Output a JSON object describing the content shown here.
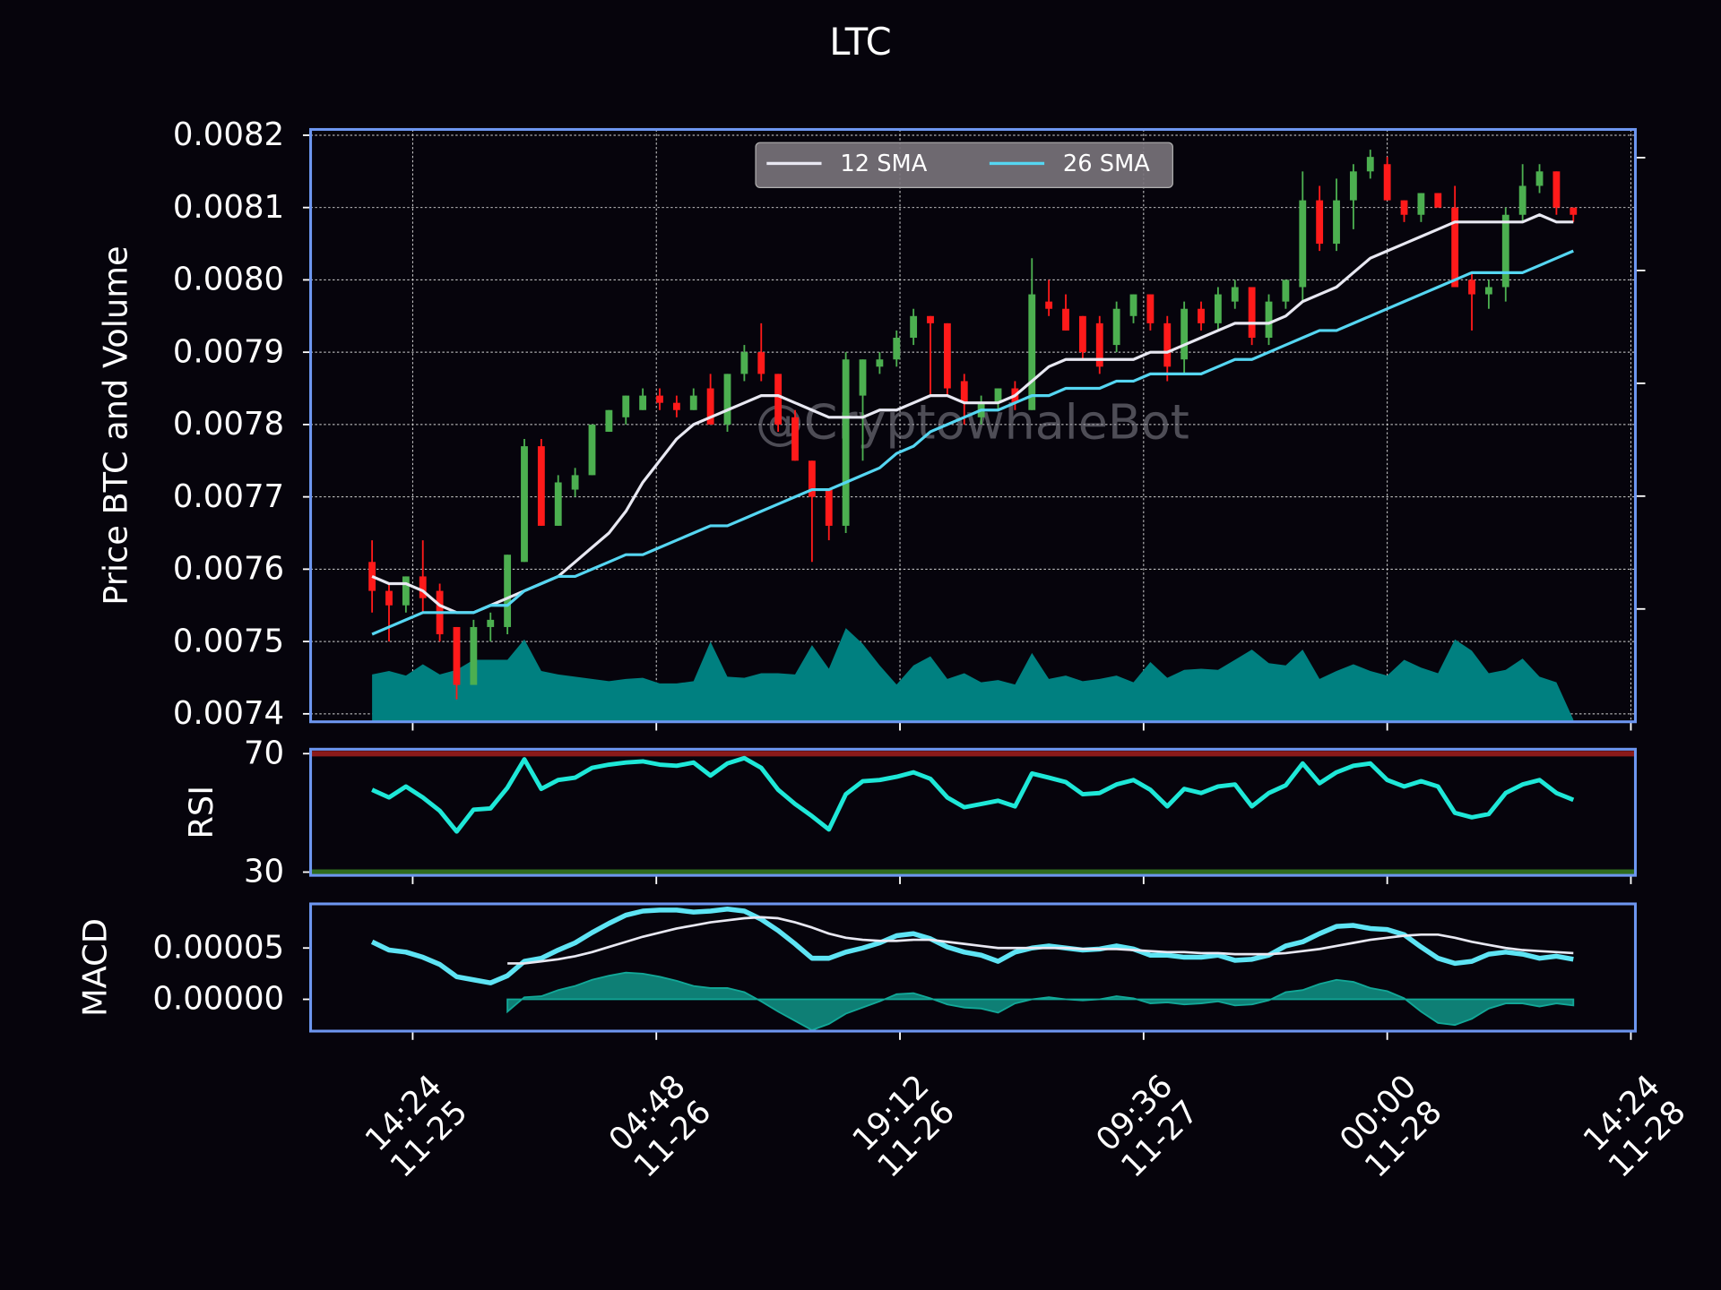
{
  "chart_data": [
    {
      "type": "candlestick",
      "title": "LTC",
      "ylabel": "Price BTC and Volume",
      "watermark": "@CryptowhaleBot",
      "x": [
        "11-25 12:00",
        "11-25 13:00",
        "11-25 14:00",
        "11-25 15:00",
        "11-25 16:00",
        "11-25 17:00",
        "11-25 18:00",
        "11-25 19:00",
        "11-25 20:00",
        "11-25 21:00",
        "11-25 22:00",
        "11-25 23:00",
        "11-26 00:00",
        "11-26 01:00",
        "11-26 02:00",
        "11-26 03:00",
        "11-26 04:00",
        "11-26 05:00",
        "11-26 06:00",
        "11-26 07:00",
        "11-26 08:00",
        "11-26 09:00",
        "11-26 10:00",
        "11-26 11:00",
        "11-26 12:00",
        "11-26 13:00",
        "11-26 14:00",
        "11-26 15:00",
        "11-26 16:00",
        "11-26 17:00",
        "11-26 18:00",
        "11-26 19:00",
        "11-26 20:00",
        "11-26 21:00",
        "11-26 22:00",
        "11-26 23:00",
        "11-27 00:00",
        "11-27 01:00",
        "11-27 02:00",
        "11-27 03:00",
        "11-27 04:00",
        "11-27 05:00",
        "11-27 06:00",
        "11-27 07:00",
        "11-27 08:00",
        "11-27 09:00",
        "11-27 10:00",
        "11-27 11:00",
        "11-27 12:00",
        "11-27 13:00",
        "11-27 14:00",
        "11-27 15:00",
        "11-27 16:00",
        "11-27 17:00",
        "11-27 18:00",
        "11-27 19:00",
        "11-27 20:00",
        "11-27 21:00",
        "11-27 22:00",
        "11-27 23:00",
        "11-28 00:00",
        "11-28 01:00",
        "11-28 02:00",
        "11-28 03:00",
        "11-28 04:00",
        "11-28 05:00",
        "11-28 06:00",
        "11-28 07:00",
        "11-28 08:00",
        "11-28 09:00",
        "11-28 10:00",
        "11-28 11:00"
      ],
      "open": [
        0.00761,
        0.00757,
        0.00755,
        0.00759,
        0.00757,
        0.00752,
        0.00744,
        0.00752,
        0.00752,
        0.00761,
        0.00777,
        0.00766,
        0.00771,
        0.00773,
        0.00779,
        0.00781,
        0.00782,
        0.00784,
        0.00783,
        0.00782,
        0.00785,
        0.0078,
        0.00787,
        0.0079,
        0.00787,
        0.00781,
        0.00775,
        0.00771,
        0.00766,
        0.00784,
        0.00788,
        0.00789,
        0.00792,
        0.00795,
        0.00794,
        0.00786,
        0.00781,
        0.00783,
        0.00785,
        0.00782,
        0.00797,
        0.00796,
        0.00795,
        0.00794,
        0.00791,
        0.00795,
        0.00798,
        0.00794,
        0.00789,
        0.00796,
        0.00794,
        0.00797,
        0.00799,
        0.00792,
        0.00797,
        0.00799,
        0.00811,
        0.00805,
        0.00811,
        0.00815,
        0.00816,
        0.00811,
        0.00809,
        0.00812,
        0.0081,
        0.008,
        0.00798,
        0.00799,
        0.00809,
        0.00813,
        0.00815,
        0.0081
      ],
      "high": [
        0.00764,
        0.00758,
        0.00759,
        0.00764,
        0.00758,
        0.00752,
        0.00753,
        0.00754,
        0.00762,
        0.00778,
        0.00778,
        0.00773,
        0.00774,
        0.0078,
        0.00782,
        0.00784,
        0.00785,
        0.00785,
        0.00784,
        0.00785,
        0.00787,
        0.00787,
        0.00791,
        0.00794,
        0.00787,
        0.00782,
        0.00775,
        0.00771,
        0.0079,
        0.00789,
        0.0079,
        0.00793,
        0.00796,
        0.00795,
        0.00794,
        0.00787,
        0.00784,
        0.00785,
        0.00786,
        0.00803,
        0.008,
        0.00798,
        0.00795,
        0.00795,
        0.00797,
        0.00798,
        0.00798,
        0.00795,
        0.00797,
        0.00797,
        0.00799,
        0.008,
        0.00799,
        0.00798,
        0.008,
        0.00815,
        0.00813,
        0.00814,
        0.00816,
        0.00818,
        0.00817,
        0.00811,
        0.00812,
        0.00812,
        0.00813,
        0.00801,
        0.008,
        0.0081,
        0.00816,
        0.00816,
        0.00815,
        0.0081
      ],
      "low": [
        0.00754,
        0.0075,
        0.00754,
        0.00754,
        0.0075,
        0.00742,
        0.00744,
        0.0075,
        0.00751,
        0.00761,
        0.00766,
        0.00766,
        0.0077,
        0.00773,
        0.00779,
        0.0078,
        0.00782,
        0.00782,
        0.00781,
        0.00782,
        0.0078,
        0.00779,
        0.00786,
        0.00786,
        0.00779,
        0.00775,
        0.00761,
        0.00764,
        0.00765,
        0.00775,
        0.00787,
        0.00788,
        0.00791,
        0.00784,
        0.00784,
        0.0078,
        0.0078,
        0.00782,
        0.00782,
        0.00782,
        0.00795,
        0.00793,
        0.00789,
        0.00787,
        0.0079,
        0.00794,
        0.00793,
        0.00786,
        0.00787,
        0.00793,
        0.00793,
        0.00796,
        0.00791,
        0.00791,
        0.00796,
        0.00797,
        0.00804,
        0.00804,
        0.00807,
        0.00814,
        0.00811,
        0.00808,
        0.00808,
        0.0081,
        0.00799,
        0.00793,
        0.00796,
        0.00797,
        0.00808,
        0.00812,
        0.00809,
        0.00808
      ],
      "close": [
        0.00757,
        0.00755,
        0.00759,
        0.00756,
        0.00751,
        0.00744,
        0.00752,
        0.00753,
        0.00762,
        0.00777,
        0.00766,
        0.00772,
        0.00773,
        0.0078,
        0.00782,
        0.00784,
        0.00784,
        0.00783,
        0.00782,
        0.00784,
        0.0078,
        0.00787,
        0.0079,
        0.00787,
        0.0078,
        0.00775,
        0.0077,
        0.00766,
        0.00789,
        0.00789,
        0.00789,
        0.00792,
        0.00795,
        0.00794,
        0.00785,
        0.00783,
        0.00783,
        0.00785,
        0.00783,
        0.00798,
        0.00796,
        0.00793,
        0.0079,
        0.00788,
        0.00796,
        0.00798,
        0.00794,
        0.00788,
        0.00796,
        0.00794,
        0.00798,
        0.00799,
        0.00792,
        0.00797,
        0.008,
        0.00811,
        0.00805,
        0.00811,
        0.00815,
        0.00817,
        0.00811,
        0.00809,
        0.00812,
        0.0081,
        0.00799,
        0.00798,
        0.00799,
        0.00809,
        0.00813,
        0.00815,
        0.0081,
        0.00809
      ],
      "up_color": "#4caf50",
      "down_color": "#ff1a1a",
      "series": [
        {
          "name": "12 SMA",
          "color": "#e8e8f2",
          "values": [
            0.00759,
            0.00758,
            0.00758,
            0.00757,
            0.00755,
            0.00754,
            0.00754,
            0.00755,
            0.00756,
            0.00757,
            0.00758,
            0.00759,
            0.00761,
            0.00763,
            0.00765,
            0.00768,
            0.00772,
            0.00775,
            0.00778,
            0.0078,
            0.00781,
            0.00782,
            0.00783,
            0.00784,
            0.00784,
            0.00783,
            0.00782,
            0.00781,
            0.00781,
            0.00781,
            0.00782,
            0.00782,
            0.00783,
            0.00784,
            0.00784,
            0.00783,
            0.00783,
            0.00783,
            0.00784,
            0.00786,
            0.00788,
            0.00789,
            0.00789,
            0.00789,
            0.00789,
            0.00789,
            0.0079,
            0.0079,
            0.00791,
            0.00792,
            0.00793,
            0.00794,
            0.00794,
            0.00794,
            0.00795,
            0.00797,
            0.00798,
            0.00799,
            0.00801,
            0.00803,
            0.00804,
            0.00805,
            0.00806,
            0.00807,
            0.00808,
            0.00808,
            0.00808,
            0.00808,
            0.00808,
            0.00809,
            0.00808,
            0.00808
          ]
        },
        {
          "name": "26 SMA",
          "color": "#55d6f2",
          "values": [
            0.00751,
            0.00752,
            0.00753,
            0.00754,
            0.00754,
            0.00754,
            0.00754,
            0.00755,
            0.00755,
            0.00757,
            0.00758,
            0.00759,
            0.00759,
            0.0076,
            0.00761,
            0.00762,
            0.00762,
            0.00763,
            0.00764,
            0.00765,
            0.00766,
            0.00766,
            0.00767,
            0.00768,
            0.00769,
            0.0077,
            0.00771,
            0.00771,
            0.00772,
            0.00773,
            0.00774,
            0.00776,
            0.00777,
            0.00779,
            0.0078,
            0.00781,
            0.00782,
            0.00782,
            0.00783,
            0.00784,
            0.00784,
            0.00785,
            0.00785,
            0.00785,
            0.00786,
            0.00786,
            0.00787,
            0.00787,
            0.00787,
            0.00787,
            0.00788,
            0.00789,
            0.00789,
            0.0079,
            0.00791,
            0.00792,
            0.00793,
            0.00793,
            0.00794,
            0.00795,
            0.00796,
            0.00797,
            0.00798,
            0.00799,
            0.008,
            0.00801,
            0.00801,
            0.00801,
            0.00801,
            0.00802,
            0.00803,
            0.00804
          ]
        }
      ],
      "volume": {
        "color": "#008080",
        "axis": "y2",
        "values": [
          42,
          45,
          41,
          51,
          42,
          46,
          55,
          55,
          55,
          73,
          45,
          42,
          40,
          38,
          36,
          38,
          39,
          34,
          34,
          36,
          71,
          40,
          39,
          43,
          43,
          42,
          68,
          47,
          83,
          69,
          50,
          33,
          50,
          58,
          38,
          43,
          35,
          37,
          33,
          61,
          38,
          41,
          36,
          38,
          41,
          35,
          53,
          39,
          46,
          47,
          46,
          55,
          64,
          52,
          50,
          64,
          38,
          45,
          51,
          45,
          41,
          55,
          48,
          43,
          73,
          63,
          43,
          46,
          56,
          40,
          35,
          2
        ]
      },
      "xlim": [
        "11-25 08:22",
        "11-28 14:40"
      ],
      "ylim": [
        0.007389,
        0.008208
      ],
      "yticks": [
        0.0074,
        0.0075,
        0.0076,
        0.0077,
        0.0078,
        0.0079,
        {
          "value": 0.008,
          "label": "0.0080"
        },
        0.0081,
        0.0082
      ],
      "y2lim": [
        0,
        525
      ],
      "y2ticks": [
        100,
        200,
        300,
        400,
        500
      ],
      "grid": true,
      "legend": "upper center"
    },
    {
      "type": "line",
      "ylabel": "RSI",
      "series": [
        {
          "color": "#1ee8d8",
          "values": [
            57.8,
            55.2,
            58.9,
            55.2,
            50.7,
            43.7,
            51.1,
            51.5,
            58.5,
            68.1,
            58.1,
            61.1,
            61.9,
            65.2,
            66.3,
            67.0,
            67.4,
            66.3,
            65.9,
            67.0,
            62.6,
            66.7,
            68.5,
            65.2,
            57.8,
            53.0,
            48.9,
            44.4,
            56.3,
            60.7,
            61.1,
            62.2,
            63.7,
            61.5,
            55.2,
            51.9,
            53.0,
            54.1,
            52.2,
            63.3,
            61.9,
            60.4,
            56.3,
            56.7,
            59.6,
            61.1,
            57.8,
            52.2,
            58.1,
            56.7,
            58.9,
            59.6,
            52.2,
            56.7,
            59.3,
            66.7,
            60.0,
            63.7,
            65.9,
            66.7,
            61.1,
            58.9,
            60.7,
            58.9,
            50.0,
            48.5,
            49.6,
            56.7,
            59.6,
            61.1,
            56.7,
            54.4
          ]
        }
      ],
      "hlines": [
        {
          "value": 70,
          "color": "#8b1a1a"
        },
        {
          "value": 30,
          "color": "#2f6b1f"
        }
      ],
      "ylim": [
        28.9,
        71.5
      ],
      "yticks": [
        30,
        70
      ]
    },
    {
      "type": "macd",
      "ylabel": "MACD",
      "series": [
        {
          "color": "#5ee4f4",
          "values": [
            5.6e-05,
            4.8e-05,
            4.6e-05,
            4.1e-05,
            3.4e-05,
            2.2e-05,
            1.9e-05,
            1.6e-05,
            2.3e-05,
            3.7e-05,
            4e-05,
            4.8e-05,
            5.5e-05,
            6.5e-05,
            7.4e-05,
            8.2e-05,
            8.6e-05,
            8.7e-05,
            8.7e-05,
            8.5e-05,
            8.6e-05,
            8.8e-05,
            8.6e-05,
            7.8e-05,
            6.7e-05,
            5.4e-05,
            4e-05,
            4e-05,
            4.6e-05,
            5e-05,
            5.5e-05,
            6.2e-05,
            6.4e-05,
            5.9e-05,
            5.1e-05,
            4.6e-05,
            4.3e-05,
            3.7e-05,
            4.6e-05,
            5e-05,
            5.2e-05,
            5e-05,
            4.8e-05,
            4.9e-05,
            5.2e-05,
            4.9e-05,
            4.3e-05,
            4.3e-05,
            4.1e-05,
            4.1e-05,
            4.3e-05,
            3.8e-05,
            3.9e-05,
            4.3e-05,
            5.2e-05,
            5.6e-05,
            6.4e-05,
            7.1e-05,
            7.2e-05,
            6.9e-05,
            6.8e-05,
            6.3e-05,
            5.1e-05,
            4e-05,
            3.5e-05,
            3.7e-05,
            4.4e-05,
            4.6e-05,
            4.4e-05,
            4e-05,
            4.2e-05,
            3.9e-05
          ]
        },
        {
          "color": "#e8e8f2",
          "values": [
            null,
            null,
            null,
            null,
            null,
            null,
            null,
            null,
            3.5e-05,
            3.5e-05,
            3.7e-05,
            3.9e-05,
            4.2e-05,
            4.6e-05,
            5.1e-05,
            5.6e-05,
            6.1e-05,
            6.5e-05,
            6.9e-05,
            7.2e-05,
            7.5e-05,
            7.7e-05,
            7.9e-05,
            8e-05,
            7.9e-05,
            7.5e-05,
            7e-05,
            6.4e-05,
            6e-05,
            5.8e-05,
            5.7e-05,
            5.7e-05,
            5.8e-05,
            5.8e-05,
            5.6e-05,
            5.4e-05,
            5.2e-05,
            5e-05,
            5e-05,
            5e-05,
            5e-05,
            5e-05,
            4.9e-05,
            4.9e-05,
            4.9e-05,
            4.8e-05,
            4.7e-05,
            4.6e-05,
            4.6e-05,
            4.5e-05,
            4.5e-05,
            4.4e-05,
            4.4e-05,
            4.4e-05,
            4.5e-05,
            4.7e-05,
            4.9e-05,
            5.2e-05,
            5.5e-05,
            5.8e-05,
            6e-05,
            6.2e-05,
            6.3e-05,
            6.3e-05,
            6e-05,
            5.6e-05,
            5.3e-05,
            5e-05,
            4.8e-05,
            4.7e-05,
            4.6e-05,
            4.5e-05
          ]
        },
        {
          "color": "#12a898",
          "kind": "area",
          "values": [
            null,
            null,
            null,
            null,
            null,
            null,
            null,
            null,
            -1.2e-05,
            2e-06,
            3e-06,
            9e-06,
            1.3e-05,
            1.9e-05,
            2.3e-05,
            2.6e-05,
            2.5e-05,
            2.2e-05,
            1.8e-05,
            1.3e-05,
            1.1e-05,
            1.1e-05,
            7e-06,
            -2e-06,
            -1.2e-05,
            -2.1e-05,
            -3e-05,
            -2.4e-05,
            -1.4e-05,
            -8e-06,
            -2e-06,
            5e-06,
            6e-06,
            1e-06,
            -5e-06,
            -8e-06,
            -9e-06,
            -1.3e-05,
            -4e-06,
            0,
            2e-06,
            0,
            -1e-06,
            0,
            3e-06,
            1e-06,
            -4e-06,
            -3e-06,
            -5e-06,
            -4e-06,
            -2e-06,
            -6e-06,
            -5e-06,
            -1e-06,
            7e-06,
            9e-06,
            1.5e-05,
            1.9e-05,
            1.7e-05,
            1.1e-05,
            8e-06,
            1e-06,
            -1.2e-05,
            -2.3e-05,
            -2.5e-05,
            -1.9e-05,
            -9e-06,
            -4e-06,
            -4e-06,
            -7e-06,
            -4e-06,
            -6e-06
          ]
        }
      ],
      "ylim": [
        -3.1e-05,
        9.3e-05
      ],
      "yticks": [
        {
          "value": 0,
          "label": "0.00000"
        },
        5e-05
      ],
      "xticks": [
        {
          "value": "11-25 14:24",
          "label": [
            "14:24",
            "11-25"
          ]
        },
        {
          "value": "11-26 04:48",
          "label": [
            "04:48",
            "11-26"
          ]
        },
        {
          "value": "11-26 19:12",
          "label": [
            "19:12",
            "11-26"
          ]
        },
        {
          "value": "11-27 09:36",
          "label": [
            "09:36",
            "11-27"
          ]
        },
        {
          "value": "11-28 00:00",
          "label": [
            "00:00",
            "11-28"
          ]
        },
        {
          "value": "11-28 14:24",
          "label": [
            "14:24",
            "11-28"
          ]
        }
      ]
    }
  ]
}
